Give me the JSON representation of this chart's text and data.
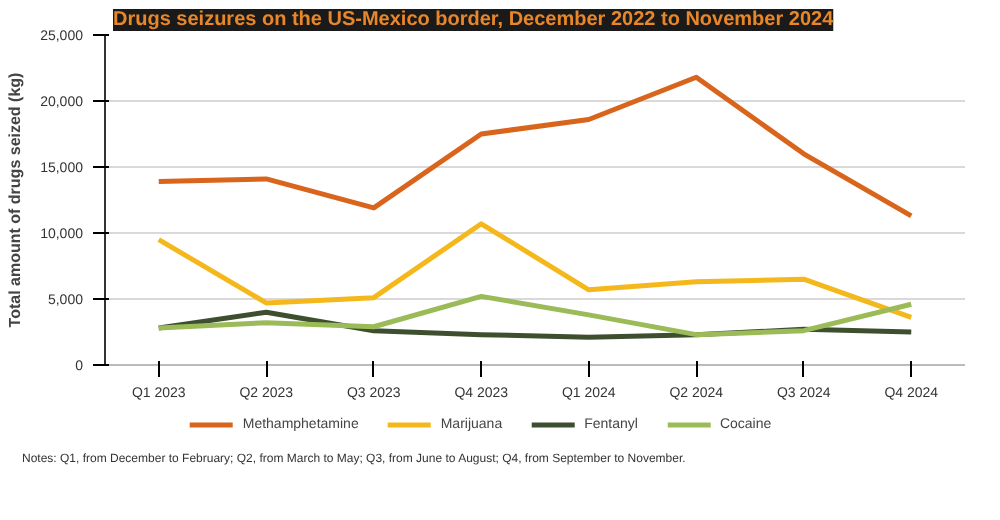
{
  "chart_data": {
    "type": "line",
    "title": "Drugs seizures on the US-Mexico border, December 2022 to November 2024",
    "ylabel": "Total amount of drugs seized (kg)",
    "categories": [
      "Q1 2023",
      "Q2 2023",
      "Q3 2023",
      "Q4 2023",
      "Q1 2024",
      "Q2 2024",
      "Q3 2024",
      "Q4 2024"
    ],
    "series": [
      {
        "name": "Methamphetamine",
        "color": "#d9641c",
        "values": [
          13900,
          14100,
          11900,
          17500,
          18600,
          21800,
          16000,
          11300
        ]
      },
      {
        "name": "Marijuana",
        "color": "#f5b81c",
        "values": [
          9500,
          4700,
          5100,
          10700,
          5700,
          6300,
          6500,
          3600
        ]
      },
      {
        "name": "Fentanyl",
        "color": "#3d4f2e",
        "values": [
          2800,
          4000,
          2600,
          2300,
          2100,
          2300,
          2700,
          2500
        ]
      },
      {
        "name": "Cocaine",
        "color": "#9bbb59",
        "values": [
          2800,
          3200,
          2900,
          5200,
          3800,
          2300,
          2600,
          4600
        ]
      }
    ],
    "ylim": [
      0,
      25000
    ],
    "yticks": [
      {
        "value": 0,
        "label": "0"
      },
      {
        "value": 5000,
        "label": "5,000"
      },
      {
        "value": 10000,
        "label": "10,000"
      },
      {
        "value": 15000,
        "label": "15,000"
      },
      {
        "value": 20000,
        "label": "20,000"
      },
      {
        "value": 25000,
        "label": "25,000"
      }
    ],
    "grid": "y",
    "legend": "bottom",
    "marker": "none",
    "line_style": "solid",
    "annotations": [
      "Notes: Q1, from December to February; Q2, from March to May; Q3, from June to August; Q4, from September to November."
    ]
  }
}
